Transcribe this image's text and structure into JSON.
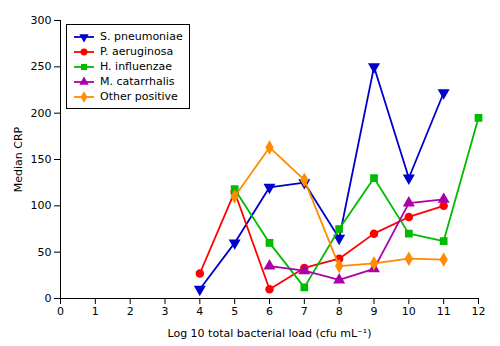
{
  "chart_data": {
    "type": "line",
    "xlabel": "Log 10 total bacterial load (cfu mL⁻¹)",
    "ylabel": "Median CRP",
    "xlim": [
      0,
      12
    ],
    "ylim": [
      0,
      300
    ],
    "xticks": [
      0,
      1,
      2,
      3,
      4,
      5,
      6,
      7,
      8,
      9,
      10,
      11,
      12
    ],
    "yticks": [
      0,
      50,
      100,
      150,
      200,
      250,
      300
    ],
    "legend": "upper-left",
    "grid": false,
    "series": [
      {
        "name": "S. pneumoniae",
        "color": "#0000CC",
        "marker": "triangle-down",
        "x": [
          4,
          5,
          6,
          7,
          8,
          9,
          10,
          11
        ],
        "values": [
          10,
          60,
          120,
          125,
          65,
          250,
          130,
          222
        ]
      },
      {
        "name": "P. aeruginosa",
        "color": "#FF0000",
        "marker": "circle",
        "x": [
          4,
          5,
          6,
          7,
          8,
          9,
          10,
          11
        ],
        "values": [
          27,
          115,
          10,
          33,
          43,
          70,
          88,
          100
        ]
      },
      {
        "name": "H. influenzae",
        "color": "#00BB00",
        "marker": "square",
        "x": [
          5,
          6,
          7,
          8,
          9,
          10,
          11,
          12
        ],
        "values": [
          118,
          60,
          12,
          75,
          130,
          70,
          62,
          195
        ]
      },
      {
        "name": "M. catarrhalis",
        "color": "#AA00AA",
        "marker": "triangle-up",
        "x": [
          6,
          7,
          8,
          9,
          10,
          11
        ],
        "values": [
          35,
          30,
          20,
          32,
          103,
          107
        ]
      },
      {
        "name": "Other positive",
        "color": "#FF8C00",
        "marker": "diamond",
        "x": [
          5,
          6,
          7,
          8,
          9,
          10,
          11
        ],
        "values": [
          110,
          163,
          128,
          35,
          38,
          43,
          42
        ]
      }
    ]
  }
}
